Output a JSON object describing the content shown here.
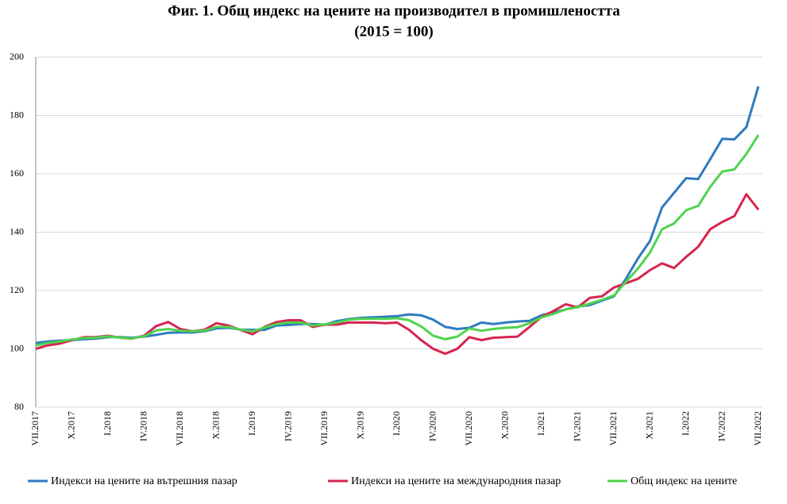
{
  "chart_data": {
    "type": "line",
    "title": "Фиг. 1. Общ индекс на цените на производител в промишлеността",
    "subtitle": "(2015 = 100)",
    "categories": [
      "VII.2017",
      null,
      null,
      "X.2017",
      null,
      null,
      "I.2018",
      null,
      null,
      "IV.2018",
      null,
      null,
      "VII.2018",
      null,
      null,
      "X.2018",
      null,
      null,
      "I.2019",
      null,
      null,
      "IV.2019",
      null,
      null,
      "VII.2019",
      null,
      null,
      "X.2019",
      null,
      null,
      "I.2020",
      null,
      null,
      "IV.2020",
      null,
      null,
      "VII.2020",
      null,
      null,
      "X.2020",
      null,
      null,
      "I.2021",
      null,
      null,
      "IV.2021",
      null,
      null,
      "VII.2021",
      null,
      null,
      "X.2021",
      null,
      null,
      "I.2022",
      null,
      null,
      "IV.2022",
      null,
      null,
      "VII.2022"
    ],
    "series": [
      {
        "name": "Индекси на цените на вътрешния пазар",
        "color": "#2e7bbf",
        "values": [
          102,
          102.5,
          102.8,
          103,
          103.3,
          103.5,
          104,
          104,
          103.8,
          104.2,
          104.8,
          105.5,
          105.6,
          105.6,
          106,
          107,
          107.2,
          106.6,
          106.5,
          106.5,
          108,
          108.2,
          108.5,
          108.5,
          108.3,
          109.5,
          110.2,
          110.6,
          110.8,
          111,
          111.2,
          111.8,
          111.5,
          110,
          107.5,
          106.8,
          107.2,
          109,
          108.5,
          109,
          109.4,
          109.6,
          111.5,
          112.5,
          113.5,
          114.5,
          115,
          116.5,
          118,
          124,
          131,
          137,
          148.5,
          153.5,
          158.5,
          158.2,
          165,
          172,
          171.8,
          176,
          190
        ]
      },
      {
        "name": "Индекси на цените на международния пазар",
        "color": "#d6254f",
        "values": [
          100,
          101.2,
          101.8,
          103,
          104,
          104,
          104.5,
          103.8,
          103.5,
          104.5,
          107.8,
          109.2,
          106.8,
          106,
          106.5,
          108.8,
          108,
          106.5,
          105,
          107.5,
          109.2,
          109.8,
          109.8,
          107.5,
          108.3,
          108.3,
          109,
          109,
          109,
          108.8,
          109,
          106.5,
          103,
          100,
          98.3,
          100,
          104,
          103,
          103.8,
          104,
          104.2,
          107.5,
          111,
          113,
          115.3,
          114.2,
          117.5,
          118,
          121,
          122.5,
          124,
          127,
          129.3,
          127.7,
          131.5,
          135,
          141,
          143.5,
          145.5,
          153,
          147.7
        ]
      },
      {
        "name": "Общ индекс на цените",
        "color": "#4fd34f",
        "values": [
          101.2,
          102,
          102.5,
          103.2,
          103.7,
          103.8,
          104.3,
          103.8,
          103.6,
          104.3,
          106.3,
          106.8,
          106.2,
          106,
          106.2,
          107.5,
          107.5,
          106.6,
          106,
          107.3,
          108.5,
          109,
          109,
          108,
          108.4,
          109,
          110,
          110.3,
          110.3,
          110.3,
          110.5,
          109.8,
          107.7,
          104.5,
          103.3,
          104.2,
          107,
          106.2,
          106.8,
          107.2,
          107.4,
          108.8,
          110.8,
          112,
          113.5,
          114.3,
          115.5,
          116.8,
          118.3,
          123,
          127.5,
          133,
          141,
          143,
          147.5,
          149,
          155.5,
          160.8,
          161.5,
          166.8,
          173.3
        ]
      }
    ],
    "ylim": [
      80,
      200
    ],
    "yticks": [
      80,
      100,
      120,
      140,
      160,
      180,
      200
    ],
    "grid": true
  }
}
